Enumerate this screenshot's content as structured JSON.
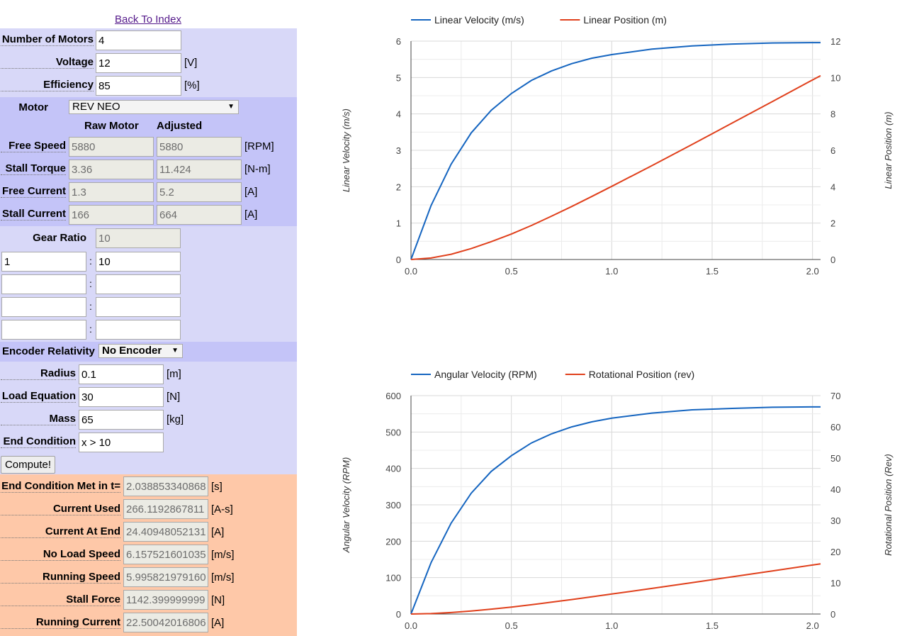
{
  "back_link": "Back To Index",
  "inputs": {
    "number_of_motors": {
      "label": "Number of Motors",
      "value": "4"
    },
    "voltage": {
      "label": "Voltage",
      "value": "12",
      "unit": "[V]"
    },
    "efficiency": {
      "label": "Efficiency",
      "value": "85",
      "unit": "[%]"
    }
  },
  "motor": {
    "label": "Motor",
    "selected": "REV NEO",
    "col_raw": "Raw Motor",
    "col_adjusted": "Adjusted",
    "rows": [
      {
        "label": "Free Speed",
        "raw": "5880",
        "adjusted": "5880",
        "unit": "[RPM]"
      },
      {
        "label": "Stall Torque",
        "raw": "3.36",
        "adjusted": "11.424",
        "unit": "[N-m]"
      },
      {
        "label": "Free Current",
        "raw": "1.3",
        "adjusted": "5.2",
        "unit": "[A]"
      },
      {
        "label": "Stall Current",
        "raw": "166",
        "adjusted": "664",
        "unit": "[A]"
      }
    ]
  },
  "gearing": {
    "label": "Gear Ratio",
    "value": "10",
    "stages": [
      {
        "in": "1",
        "out": "10"
      },
      {
        "in": "",
        "out": ""
      },
      {
        "in": "",
        "out": ""
      },
      {
        "in": "",
        "out": ""
      }
    ],
    "separator": ":"
  },
  "encoder": {
    "label": "Encoder Relativity",
    "selected": "No Encoder"
  },
  "mechanism": {
    "radius": {
      "label": "Radius",
      "value": "0.1",
      "unit": "[m]"
    },
    "load": {
      "label": "Load Equation",
      "value": "30",
      "unit": "[N]"
    },
    "mass": {
      "label": "Mass",
      "value": "65",
      "unit": "[kg]"
    },
    "end_condition": {
      "label": "End Condition",
      "value": "x > 10"
    }
  },
  "compute_label": "Compute!",
  "results": [
    {
      "label": "End Condition Met in t=",
      "value": "2.038853340868(",
      "unit": "[s]"
    },
    {
      "label": "Current Used",
      "value": "266.1192867811",
      "unit": "[A-s]"
    },
    {
      "label": "Current At End",
      "value": "24.409480521314",
      "unit": "[A]"
    },
    {
      "label": "No Load Speed",
      "value": "6.1575216010359",
      "unit": "[m/s]"
    },
    {
      "label": "Running Speed",
      "value": "5.9958219791600",
      "unit": "[m/s]"
    },
    {
      "label": "Stall Force",
      "value": "1142.399999999",
      "unit": "[N]"
    },
    {
      "label": "Running Current",
      "value": "22.500420168067",
      "unit": "[A]"
    }
  ],
  "colors": {
    "series_blue": "#1565c0",
    "series_red": "#e0401c"
  },
  "chart_data": [
    {
      "type": "line",
      "title": "",
      "legend_placement": "top",
      "xlabel": "",
      "ylabel": "Linear Velocity (m/s)",
      "y2label": "Linear Position (m)",
      "xlim": [
        0,
        2.04
      ],
      "ylim": [
        0,
        6
      ],
      "y2lim": [
        0,
        12
      ],
      "xticks": [
        "0.0",
        "0.5",
        "1.0",
        "1.5",
        "2.0"
      ],
      "yticks": [
        "0",
        "1",
        "2",
        "3",
        "4",
        "5",
        "6"
      ],
      "y2ticks": [
        "0",
        "2",
        "4",
        "6",
        "8",
        "10",
        "12"
      ],
      "grid": true,
      "series": [
        {
          "name": "Linear Velocity (m/s)",
          "axis": "left",
          "color": "#1565c0",
          "x": [
            0,
            0.1,
            0.2,
            0.3,
            0.4,
            0.5,
            0.6,
            0.7,
            0.8,
            0.9,
            1.0,
            1.2,
            1.4,
            1.6,
            1.8,
            2.0,
            2.04
          ],
          "y": [
            0,
            1.48,
            2.62,
            3.48,
            4.1,
            4.56,
            4.92,
            5.18,
            5.38,
            5.53,
            5.63,
            5.78,
            5.87,
            5.92,
            5.95,
            5.96,
            5.96
          ]
        },
        {
          "name": "Linear Position (m)",
          "axis": "right",
          "color": "#e0401c",
          "x": [
            0,
            0.1,
            0.2,
            0.3,
            0.4,
            0.5,
            0.6,
            0.7,
            0.8,
            0.9,
            1.0,
            1.2,
            1.4,
            1.6,
            1.8,
            2.0,
            2.04
          ],
          "y": [
            0,
            0.08,
            0.29,
            0.6,
            0.98,
            1.4,
            1.87,
            2.38,
            2.91,
            3.46,
            4.02,
            5.16,
            6.32,
            7.5,
            8.68,
            9.87,
            10.1
          ]
        }
      ]
    },
    {
      "type": "line",
      "title": "",
      "legend_placement": "top",
      "xlabel": "",
      "ylabel": "Angular Velocity (RPM)",
      "y2label": "Rotational Position (Rev)",
      "xlim": [
        0,
        2.04
      ],
      "ylim": [
        0,
        600
      ],
      "y2lim": [
        0,
        70
      ],
      "xticks": [
        "0.0",
        "0.5",
        "1.0",
        "1.5",
        "2.0"
      ],
      "yticks": [
        "0",
        "100",
        "200",
        "300",
        "400",
        "500",
        "600"
      ],
      "y2ticks": [
        "0",
        "10",
        "20",
        "30",
        "40",
        "50",
        "60",
        "70"
      ],
      "grid": true,
      "series": [
        {
          "name": "Angular Velocity (RPM)",
          "axis": "left",
          "color": "#1565c0",
          "x": [
            0,
            0.1,
            0.2,
            0.3,
            0.4,
            0.5,
            0.6,
            0.7,
            0.8,
            0.9,
            1.0,
            1.2,
            1.4,
            1.6,
            1.8,
            2.0,
            2.04
          ],
          "y": [
            0,
            141,
            250,
            332,
            392,
            435,
            470,
            495,
            514,
            528,
            538,
            552,
            561,
            565,
            568,
            569,
            569
          ]
        },
        {
          "name": "Rotational Position (rev)",
          "axis": "right",
          "color": "#e0401c",
          "x": [
            0,
            0.1,
            0.2,
            0.3,
            0.4,
            0.5,
            0.6,
            0.7,
            0.8,
            0.9,
            1.0,
            1.2,
            1.4,
            1.6,
            1.8,
            2.0,
            2.04
          ],
          "y": [
            0,
            0.13,
            0.47,
            0.96,
            1.56,
            2.23,
            2.98,
            3.79,
            4.63,
            5.51,
            6.4,
            8.21,
            10.06,
            11.94,
            13.82,
            15.71,
            16.1
          ]
        }
      ]
    }
  ]
}
